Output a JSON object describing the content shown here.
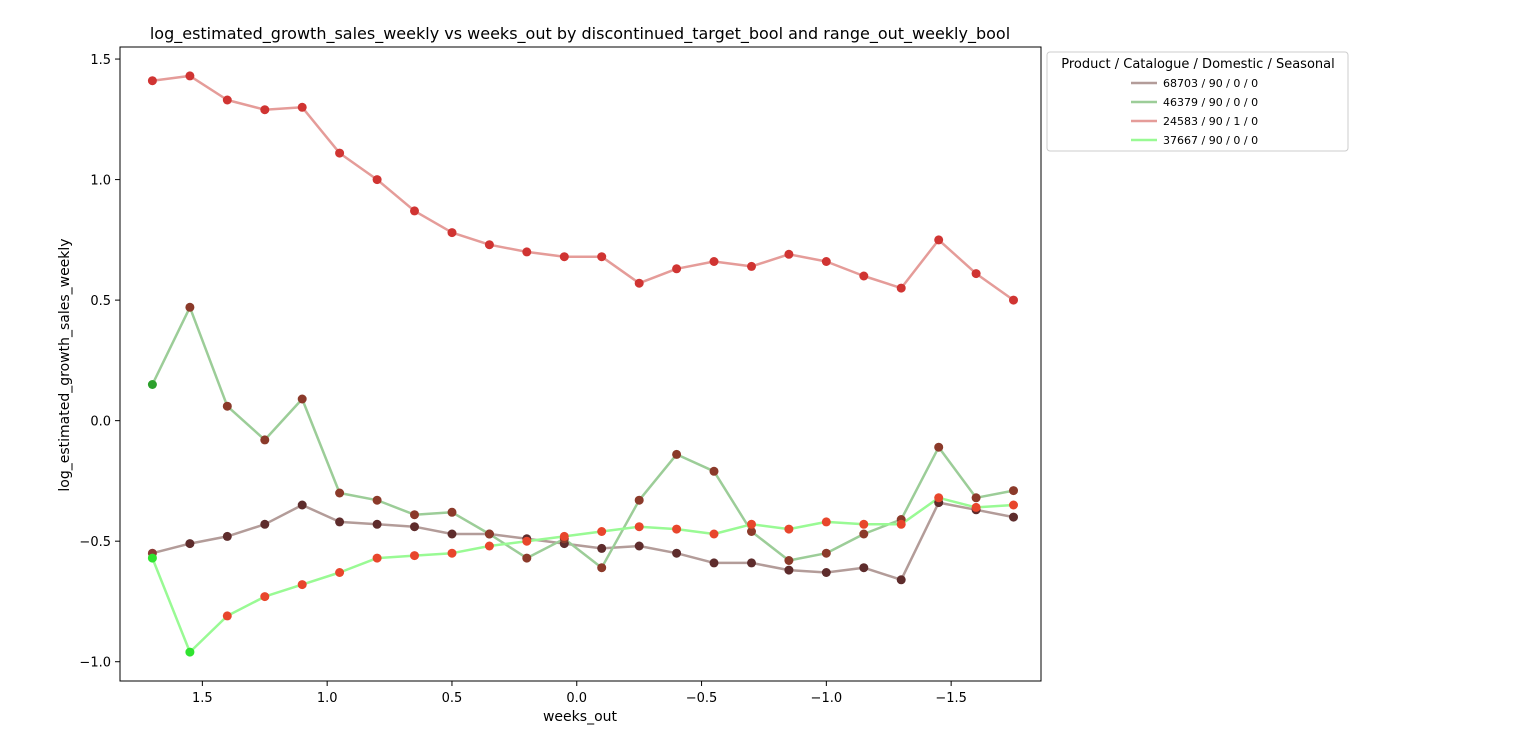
{
  "chart_data": {
    "type": "line",
    "title": "log_estimated_growth_sales_weekly vs weeks_out by discontinued_target_bool and range_out_weekly_bool",
    "xlabel": "weeks_out",
    "ylabel": "log_estimated_growth_sales_weekly",
    "xlim": [
      1.83,
      -1.86
    ],
    "ylim": [
      -1.08,
      1.55
    ],
    "x_inverted": true,
    "grid": false,
    "legend_placement": "outside top-right",
    "legend_title": "Product / Catalogue / Domestic / Seasonal",
    "xticks": [
      1.5,
      1.0,
      0.5,
      0.0,
      -0.5,
      -1.0,
      -1.5
    ],
    "xtick_labels": [
      "1.5",
      "1.0",
      "0.5",
      "0.0",
      "−0.5",
      "−1.0",
      "−1.5"
    ],
    "yticks": [
      1.5,
      1.0,
      0.5,
      0.0,
      -0.5,
      -1.0
    ],
    "ytick_labels": [
      "1.5",
      "1.0",
      "0.5",
      "0.0",
      "−0.5",
      "−1.0"
    ],
    "x": [
      1.7,
      1.55,
      1.4,
      1.25,
      1.1,
      0.95,
      0.8,
      0.65,
      0.5,
      0.35,
      0.2,
      0.05,
      -0.1,
      -0.25,
      -0.4,
      -0.55,
      -0.7,
      -0.85,
      -1.0,
      -1.15,
      -1.3,
      -1.45,
      -1.6,
      -1.75
    ],
    "series": [
      {
        "name": "68703 / 90 / 0 / 0",
        "line_color": "#b39c99",
        "marker_color": "#5e2c2c",
        "marker_colors": [
          "#8b3a35",
          "#5e2c2c",
          "#5e2c2c",
          "#5e2c2c",
          "#5e2c2c",
          "#5e2c2c",
          "#5e2c2c",
          "#5e2c2c",
          "#5e2c2c",
          "#5e2c2c",
          "#5e2c2c",
          "#5e2c2c",
          "#5e2c2c",
          "#5e2c2c",
          "#5e2c2c",
          "#5e2c2c",
          "#5e2c2c",
          "#5e2c2c",
          "#5e2c2c",
          "#5e2c2c",
          "#5e2c2c",
          "#5e2c2c",
          "#5e2c2c",
          "#5e2c2c"
        ],
        "values": [
          -0.55,
          -0.51,
          -0.48,
          -0.43,
          -0.35,
          -0.42,
          -0.43,
          -0.44,
          -0.47,
          -0.47,
          -0.49,
          -0.51,
          -0.53,
          -0.52,
          -0.55,
          -0.59,
          -0.59,
          -0.62,
          -0.63,
          -0.61,
          -0.66,
          -0.34,
          -0.37,
          -0.4
        ]
      },
      {
        "name": "46379 / 90 / 0 / 0",
        "line_color": "#9ccd98",
        "marker_color": "#8b3a2a",
        "marker_colors": [
          "#2ca02c",
          "#8b3a2a",
          "#8b3a2a",
          "#8b3a2a",
          "#8b3a2a",
          "#8b3a2a",
          "#8b3a2a",
          "#8b3a2a",
          "#8b3a2a",
          "#8b3a2a",
          "#8b3a2a",
          "#8b3a2a",
          "#8b3a2a",
          "#8b3a2a",
          "#8b3a2a",
          "#8b3a2a",
          "#8b3a2a",
          "#8b3a2a",
          "#8b3a2a",
          "#8b3a2a",
          "#8b3a2a",
          "#8b3a2a",
          "#8b3a2a",
          "#8b3a2a"
        ],
        "values": [
          0.15,
          0.47,
          0.06,
          -0.08,
          0.09,
          -0.3,
          -0.33,
          -0.39,
          -0.38,
          -0.47,
          -0.57,
          -0.49,
          -0.61,
          -0.33,
          -0.14,
          -0.21,
          -0.46,
          -0.58,
          -0.55,
          -0.47,
          -0.41,
          -0.11,
          -0.32,
          -0.29
        ]
      },
      {
        "name": "24583 / 90 / 1 / 0",
        "line_color": "#e59c99",
        "marker_color": "#d03432",
        "marker_colors": [
          "#d03432",
          "#d03432",
          "#d03432",
          "#d03432",
          "#d03432",
          "#d03432",
          "#d03432",
          "#d03432",
          "#d03432",
          "#d03432",
          "#d03432",
          "#d03432",
          "#d03432",
          "#d03432",
          "#d03432",
          "#d03432",
          "#d03432",
          "#d03432",
          "#d03432",
          "#d03432",
          "#d03432",
          "#d03432",
          "#d03432",
          "#d03432"
        ],
        "values": [
          1.41,
          1.43,
          1.33,
          1.29,
          1.3,
          1.11,
          1.0,
          0.87,
          0.78,
          0.73,
          0.7,
          0.68,
          0.68,
          0.57,
          0.63,
          0.66,
          0.64,
          0.69,
          0.66,
          0.6,
          0.55,
          0.75,
          0.61,
          0.5
        ]
      },
      {
        "name": "37667 / 90 / 0 / 0",
        "line_color": "#99fa94",
        "marker_color": "#e8462c",
        "marker_colors": [
          "#2fe32f",
          "#2fe32f",
          "#e8462c",
          "#e8462c",
          "#e8462c",
          "#e8462c",
          "#e8462c",
          "#e8462c",
          "#e8462c",
          "#e8462c",
          "#e8462c",
          "#e8462c",
          "#e8462c",
          "#e8462c",
          "#e8462c",
          "#e8462c",
          "#e8462c",
          "#e8462c",
          "#e8462c",
          "#e8462c",
          "#e8462c",
          "#e8462c",
          "#e8462c",
          "#e8462c"
        ],
        "values": [
          -0.57,
          -0.96,
          -0.81,
          -0.73,
          -0.68,
          -0.63,
          -0.57,
          -0.56,
          -0.55,
          -0.52,
          -0.5,
          -0.48,
          -0.46,
          -0.44,
          -0.45,
          -0.47,
          -0.43,
          -0.45,
          -0.42,
          -0.43,
          -0.43,
          -0.32,
          -0.36,
          -0.35
        ]
      }
    ]
  }
}
